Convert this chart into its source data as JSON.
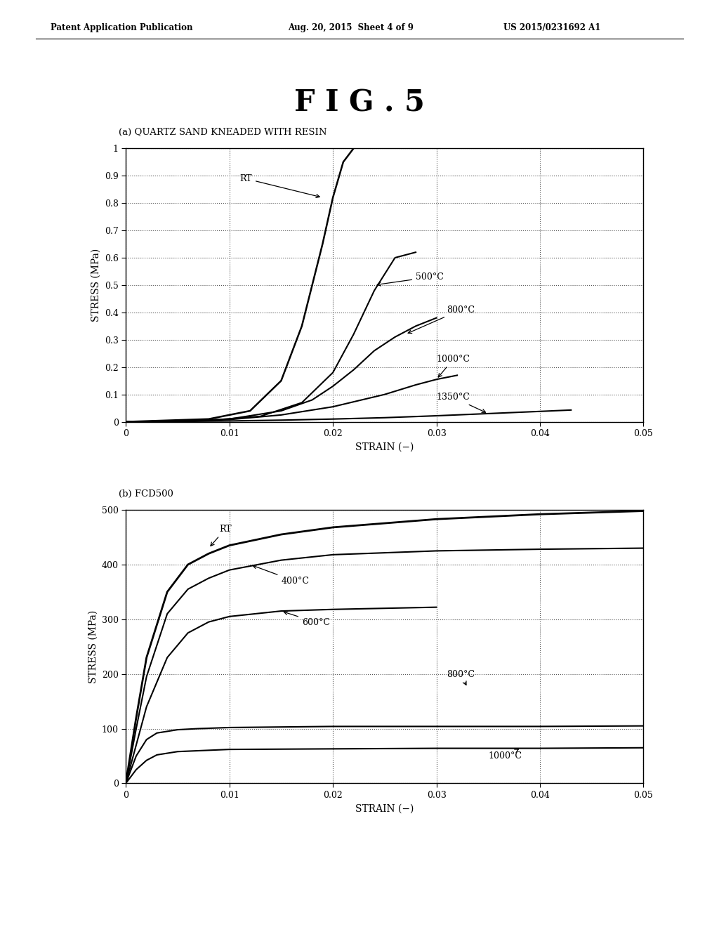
{
  "fig_title": "F I G . 5",
  "header_left": "Patent Application Publication",
  "header_mid": "Aug. 20, 2015  Sheet 4 of 9",
  "header_right": "US 2015/0231692 A1",
  "plot_a_title": "(a) QUARTZ SAND KNEADED WITH RESIN",
  "plot_b_title": "(b) FCD500",
  "plot_a_ylabel": "STRESS (MPa)",
  "plot_b_ylabel": "STRESS (MPa)",
  "plot_a_xlabel": "STRAIN (−)",
  "plot_b_xlabel": "STRAIN (−)",
  "plot_a_ylim": [
    0,
    1.0
  ],
  "plot_a_xlim": [
    0,
    0.05
  ],
  "plot_b_ylim": [
    0,
    500
  ],
  "plot_b_xlim": [
    0,
    0.05
  ],
  "plot_a_yticks": [
    0,
    0.1,
    0.2,
    0.3,
    0.4,
    0.5,
    0.6,
    0.7,
    0.8,
    0.9,
    1.0
  ],
  "plot_a_xticks": [
    0,
    0.01,
    0.02,
    0.03,
    0.04,
    0.05
  ],
  "plot_b_yticks": [
    0,
    100,
    200,
    300,
    400,
    500
  ],
  "plot_b_xticks": [
    0,
    0.01,
    0.02,
    0.03,
    0.04,
    0.05
  ],
  "background_color": "#ffffff",
  "line_color": "#000000"
}
